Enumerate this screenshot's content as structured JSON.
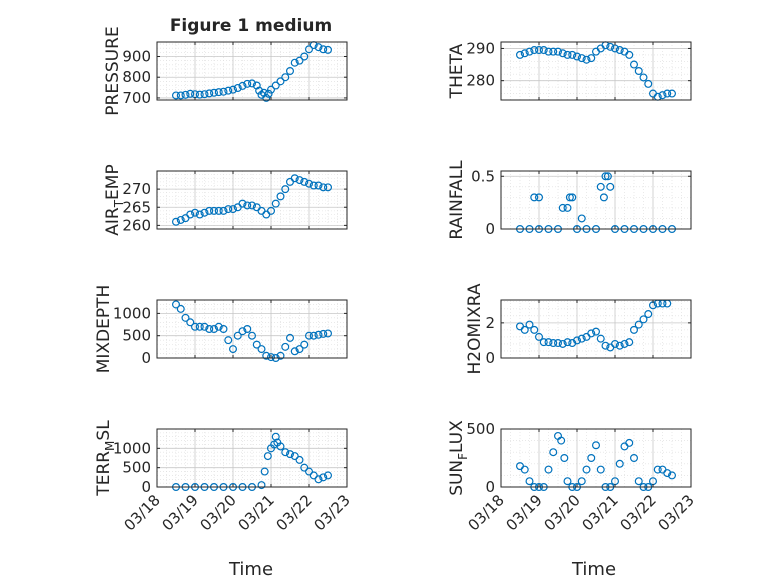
{
  "figure": {
    "title": "Figure 1 medium",
    "xlabel": "Time",
    "x_ticks": [
      "03/18",
      "03/19",
      "03/20",
      "03/21",
      "03/22",
      "03/23"
    ]
  },
  "chart_data": [
    {
      "type": "scatter",
      "ylabel": "PRESSURE",
      "ylim": [
        690,
        970
      ],
      "yticks": [
        700,
        800,
        900
      ],
      "grid": true,
      "x_range": [
        "03/18",
        "03/23"
      ],
      "points": [
        [
          "03/18 12:00",
          712
        ],
        [
          "03/18 15:00",
          712
        ],
        [
          "03/18 18:00",
          715
        ],
        [
          "03/18 21:00",
          720
        ],
        [
          "03/19 00:00",
          718
        ],
        [
          "03/19 03:00",
          716
        ],
        [
          "03/19 06:00",
          718
        ],
        [
          "03/19 09:00",
          722
        ],
        [
          "03/19 12:00",
          725
        ],
        [
          "03/19 15:00",
          728
        ],
        [
          "03/19 18:00",
          730
        ],
        [
          "03/19 21:00",
          735
        ],
        [
          "03/20 00:00",
          740
        ],
        [
          "03/20 03:00",
          748
        ],
        [
          "03/20 06:00",
          758
        ],
        [
          "03/20 09:00",
          768
        ],
        [
          "03/20 12:00",
          770
        ],
        [
          "03/20 15:00",
          760
        ],
        [
          "03/20 16:30",
          735
        ],
        [
          "03/20 18:00",
          715
        ],
        [
          "03/20 19:30",
          725
        ],
        [
          "03/20 21:00",
          700
        ],
        [
          "03/20 22:30",
          720
        ],
        [
          "03/21 00:00",
          740
        ],
        [
          "03/21 03:00",
          760
        ],
        [
          "03/21 06:00",
          780
        ],
        [
          "03/21 09:00",
          800
        ],
        [
          "03/21 12:00",
          830
        ],
        [
          "03/21 15:00",
          870
        ],
        [
          "03/21 18:00",
          880
        ],
        [
          "03/21 21:00",
          900
        ],
        [
          "03/22 00:00",
          935
        ],
        [
          "03/22 03:00",
          955
        ],
        [
          "03/22 06:00",
          945
        ],
        [
          "03/22 09:00",
          935
        ],
        [
          "03/22 12:00",
          932
        ]
      ]
    },
    {
      "type": "scatter",
      "ylabel": "THETA",
      "ylim": [
        274,
        292
      ],
      "yticks": [
        280,
        290
      ],
      "grid": true,
      "x_range": [
        "03/18",
        "03/23"
      ],
      "points": [
        [
          "03/18 12:00",
          288
        ],
        [
          "03/18 15:00",
          288.5
        ],
        [
          "03/18 18:00",
          289
        ],
        [
          "03/18 21:00",
          289.5
        ],
        [
          "03/19 00:00",
          289.5
        ],
        [
          "03/19 03:00",
          289.5
        ],
        [
          "03/19 06:00",
          289
        ],
        [
          "03/19 09:00",
          289
        ],
        [
          "03/19 12:00",
          289
        ],
        [
          "03/19 15:00",
          288.5
        ],
        [
          "03/19 18:00",
          288
        ],
        [
          "03/19 21:00",
          288
        ],
        [
          "03/20 00:00",
          287.5
        ],
        [
          "03/20 03:00",
          287
        ],
        [
          "03/20 06:00",
          286.5
        ],
        [
          "03/20 09:00",
          287
        ],
        [
          "03/20 12:00",
          289
        ],
        [
          "03/20 15:00",
          290
        ],
        [
          "03/20 18:00",
          291
        ],
        [
          "03/20 21:00",
          290.5
        ],
        [
          "03/21 00:00",
          290
        ],
        [
          "03/21 03:00",
          289.5
        ],
        [
          "03/21 06:00",
          289
        ],
        [
          "03/21 09:00",
          288
        ],
        [
          "03/21 12:00",
          285
        ],
        [
          "03/21 15:00",
          283
        ],
        [
          "03/21 18:00",
          281
        ],
        [
          "03/21 21:00",
          279
        ],
        [
          "03/22 00:00",
          276
        ],
        [
          "03/22 03:00",
          275
        ],
        [
          "03/22 06:00",
          275.5
        ],
        [
          "03/22 09:00",
          276
        ],
        [
          "03/22 12:00",
          276
        ]
      ]
    },
    {
      "type": "scatter",
      "ylabel": "AIR_TEMP",
      "ylim": [
        259,
        275
      ],
      "yticks": [
        260,
        265,
        270
      ],
      "grid": true,
      "x_range": [
        "03/18",
        "03/23"
      ],
      "points": [
        [
          "03/18 12:00",
          261
        ],
        [
          "03/18 15:00",
          261.5
        ],
        [
          "03/18 18:00",
          262
        ],
        [
          "03/18 21:00",
          263
        ],
        [
          "03/19 00:00",
          263.5
        ],
        [
          "03/19 03:00",
          263
        ],
        [
          "03/19 06:00",
          263.5
        ],
        [
          "03/19 09:00",
          264
        ],
        [
          "03/19 12:00",
          264
        ],
        [
          "03/19 15:00",
          264
        ],
        [
          "03/19 18:00",
          264
        ],
        [
          "03/19 21:00",
          264.5
        ],
        [
          "03/20 00:00",
          264.5
        ],
        [
          "03/20 03:00",
          265
        ],
        [
          "03/20 06:00",
          266
        ],
        [
          "03/20 09:00",
          265.5
        ],
        [
          "03/20 12:00",
          265.5
        ],
        [
          "03/20 15:00",
          265
        ],
        [
          "03/20 18:00",
          264
        ],
        [
          "03/20 21:00",
          263
        ],
        [
          "03/21 00:00",
          264
        ],
        [
          "03/21 03:00",
          266
        ],
        [
          "03/21 06:00",
          268
        ],
        [
          "03/21 09:00",
          270
        ],
        [
          "03/21 12:00",
          272
        ],
        [
          "03/21 15:00",
          273
        ],
        [
          "03/21 18:00",
          272.5
        ],
        [
          "03/21 21:00",
          272
        ],
        [
          "03/22 00:00",
          271.5
        ],
        [
          "03/22 03:00",
          271
        ],
        [
          "03/22 06:00",
          271
        ],
        [
          "03/22 09:00",
          270.5
        ],
        [
          "03/22 12:00",
          270.5
        ]
      ]
    },
    {
      "type": "scatter",
      "ylabel": "RAINFALL",
      "ylim": [
        0,
        0.55
      ],
      "yticks": [
        0,
        0.5
      ],
      "grid": true,
      "x_range": [
        "03/18",
        "03/23"
      ],
      "points": [
        [
          "03/18 12:00",
          0
        ],
        [
          "03/18 18:00",
          0
        ],
        [
          "03/19 00:00",
          0
        ],
        [
          "03/18 21:00",
          0.3
        ],
        [
          "03/19 00:00",
          0.3
        ],
        [
          "03/19 06:00",
          0
        ],
        [
          "03/19 12:00",
          0
        ],
        [
          "03/19 15:00",
          0.2
        ],
        [
          "03/19 18:00",
          0.2
        ],
        [
          "03/19 19:30",
          0.3
        ],
        [
          "03/19 21:00",
          0.3
        ],
        [
          "03/20 00:00",
          0
        ],
        [
          "03/20 03:00",
          0.1
        ],
        [
          "03/20 06:00",
          0
        ],
        [
          "03/20 12:00",
          0
        ],
        [
          "03/20 15:00",
          0.4
        ],
        [
          "03/20 18:00",
          0.5
        ],
        [
          "03/20 19:30",
          0.5
        ],
        [
          "03/20 17:00",
          0.3
        ],
        [
          "03/20 21:00",
          0.4
        ],
        [
          "03/21 00:00",
          0
        ],
        [
          "03/21 06:00",
          0
        ],
        [
          "03/21 12:00",
          0
        ],
        [
          "03/21 18:00",
          0
        ],
        [
          "03/22 00:00",
          0
        ],
        [
          "03/22 06:00",
          0
        ],
        [
          "03/22 12:00",
          0
        ]
      ]
    },
    {
      "type": "scatter",
      "ylabel": "MIXDEPTH",
      "ylim": [
        0,
        1300
      ],
      "yticks": [
        0,
        500,
        1000
      ],
      "grid": true,
      "x_range": [
        "03/18",
        "03/23"
      ],
      "points": [
        [
          "03/18 12:00",
          1200
        ],
        [
          "03/18 15:00",
          1100
        ],
        [
          "03/18 18:00",
          900
        ],
        [
          "03/18 21:00",
          800
        ],
        [
          "03/19 00:00",
          700
        ],
        [
          "03/19 03:00",
          700
        ],
        [
          "03/19 06:00",
          700
        ],
        [
          "03/19 09:00",
          650
        ],
        [
          "03/19 12:00",
          650
        ],
        [
          "03/19 15:00",
          700
        ],
        [
          "03/19 18:00",
          650
        ],
        [
          "03/19 21:00",
          400
        ],
        [
          "03/20 00:00",
          200
        ],
        [
          "03/20 03:00",
          500
        ],
        [
          "03/20 06:00",
          600
        ],
        [
          "03/20 09:00",
          650
        ],
        [
          "03/20 12:00",
          500
        ],
        [
          "03/20 15:00",
          300
        ],
        [
          "03/20 18:00",
          200
        ],
        [
          "03/20 21:00",
          50
        ],
        [
          "03/21 00:00",
          20
        ],
        [
          "03/21 03:00",
          0
        ],
        [
          "03/21 06:00",
          50
        ],
        [
          "03/21 09:00",
          250
        ],
        [
          "03/21 12:00",
          450
        ],
        [
          "03/21 15:00",
          150
        ],
        [
          "03/21 18:00",
          200
        ],
        [
          "03/21 21:00",
          300
        ],
        [
          "03/22 00:00",
          500
        ],
        [
          "03/22 03:00",
          500
        ],
        [
          "03/22 06:00",
          520
        ],
        [
          "03/22 09:00",
          540
        ],
        [
          "03/22 12:00",
          550
        ]
      ]
    },
    {
      "type": "scatter",
      "ylabel": "H2OMIXRA",
      "ylim": [
        0,
        3.3
      ],
      "yticks": [
        0,
        2
      ],
      "grid": true,
      "x_range": [
        "03/18",
        "03/23"
      ],
      "points": [
        [
          "03/18 12:00",
          1.8
        ],
        [
          "03/18 15:00",
          1.6
        ],
        [
          "03/18 18:00",
          1.9
        ],
        [
          "03/18 21:00",
          1.6
        ],
        [
          "03/19 00:00",
          1.2
        ],
        [
          "03/19 03:00",
          0.9
        ],
        [
          "03/19 06:00",
          0.9
        ],
        [
          "03/19 09:00",
          0.85
        ],
        [
          "03/19 12:00",
          0.85
        ],
        [
          "03/19 15:00",
          0.8
        ],
        [
          "03/19 18:00",
          0.9
        ],
        [
          "03/19 21:00",
          0.85
        ],
        [
          "03/20 00:00",
          1.0
        ],
        [
          "03/20 03:00",
          1.1
        ],
        [
          "03/20 06:00",
          1.2
        ],
        [
          "03/20 09:00",
          1.4
        ],
        [
          "03/20 12:00",
          1.5
        ],
        [
          "03/20 15:00",
          1.1
        ],
        [
          "03/20 18:00",
          0.7
        ],
        [
          "03/20 21:00",
          0.6
        ],
        [
          "03/21 00:00",
          0.8
        ],
        [
          "03/21 03:00",
          0.7
        ],
        [
          "03/21 06:00",
          0.8
        ],
        [
          "03/21 09:00",
          0.9
        ],
        [
          "03/21 12:00",
          1.6
        ],
        [
          "03/21 15:00",
          1.9
        ],
        [
          "03/21 18:00",
          2.2
        ],
        [
          "03/21 21:00",
          2.5
        ],
        [
          "03/22 00:00",
          3.0
        ],
        [
          "03/22 03:00",
          3.1
        ],
        [
          "03/22 06:00",
          3.1
        ],
        [
          "03/22 09:00",
          3.1
        ]
      ]
    },
    {
      "type": "scatter",
      "ylabel": "TERR_MSL",
      "ylim": [
        0,
        1500
      ],
      "yticks": [
        0,
        500,
        1000
      ],
      "grid": true,
      "x_range": [
        "03/18",
        "03/23"
      ],
      "points": [
        [
          "03/18 12:00",
          0
        ],
        [
          "03/18 18:00",
          0
        ],
        [
          "03/19 00:00",
          0
        ],
        [
          "03/19 06:00",
          0
        ],
        [
          "03/19 12:00",
          0
        ],
        [
          "03/19 18:00",
          0
        ],
        [
          "03/20 00:00",
          0
        ],
        [
          "03/20 06:00",
          0
        ],
        [
          "03/20 12:00",
          0
        ],
        [
          "03/20 18:00",
          50
        ],
        [
          "03/20 20:00",
          400
        ],
        [
          "03/20 22:00",
          800
        ],
        [
          "03/21 00:00",
          1000
        ],
        [
          "03/21 02:00",
          1100
        ],
        [
          "03/21 03:00",
          1300
        ],
        [
          "03/21 04:00",
          1150
        ],
        [
          "03/21 06:00",
          1050
        ],
        [
          "03/21 09:00",
          900
        ],
        [
          "03/21 12:00",
          850
        ],
        [
          "03/21 15:00",
          800
        ],
        [
          "03/21 18:00",
          700
        ],
        [
          "03/21 21:00",
          500
        ],
        [
          "03/22 00:00",
          400
        ],
        [
          "03/22 03:00",
          300
        ],
        [
          "03/22 06:00",
          200
        ],
        [
          "03/22 09:00",
          250
        ],
        [
          "03/22 12:00",
          300
        ]
      ]
    },
    {
      "type": "scatter",
      "ylabel": "SUN_FLUX",
      "ylim": [
        0,
        500
      ],
      "yticks": [
        0,
        500
      ],
      "grid": true,
      "x_range": [
        "03/18",
        "03/23"
      ],
      "points": [
        [
          "03/18 12:00",
          180
        ],
        [
          "03/18 15:00",
          150
        ],
        [
          "03/18 18:00",
          50
        ],
        [
          "03/18 21:00",
          0
        ],
        [
          "03/19 00:00",
          0
        ],
        [
          "03/19 03:00",
          0
        ],
        [
          "03/19 06:00",
          150
        ],
        [
          "03/19 09:00",
          300
        ],
        [
          "03/19 12:00",
          440
        ],
        [
          "03/19 14:00",
          400
        ],
        [
          "03/19 16:00",
          250
        ],
        [
          "03/19 18:00",
          50
        ],
        [
          "03/19 21:00",
          0
        ],
        [
          "03/20 00:00",
          0
        ],
        [
          "03/20 03:00",
          50
        ],
        [
          "03/20 06:00",
          150
        ],
        [
          "03/20 09:00",
          250
        ],
        [
          "03/20 12:00",
          360
        ],
        [
          "03/20 15:00",
          150
        ],
        [
          "03/20 18:00",
          0
        ],
        [
          "03/20 21:00",
          0
        ],
        [
          "03/21 00:00",
          50
        ],
        [
          "03/21 03:00",
          200
        ],
        [
          "03/21 06:00",
          350
        ],
        [
          "03/21 09:00",
          380
        ],
        [
          "03/21 12:00",
          250
        ],
        [
          "03/21 15:00",
          50
        ],
        [
          "03/21 18:00",
          0
        ],
        [
          "03/21 21:00",
          0
        ],
        [
          "03/22 00:00",
          50
        ],
        [
          "03/22 03:00",
          150
        ],
        [
          "03/22 06:00",
          150
        ],
        [
          "03/22 09:00",
          120
        ],
        [
          "03/22 12:00",
          100
        ]
      ]
    }
  ]
}
